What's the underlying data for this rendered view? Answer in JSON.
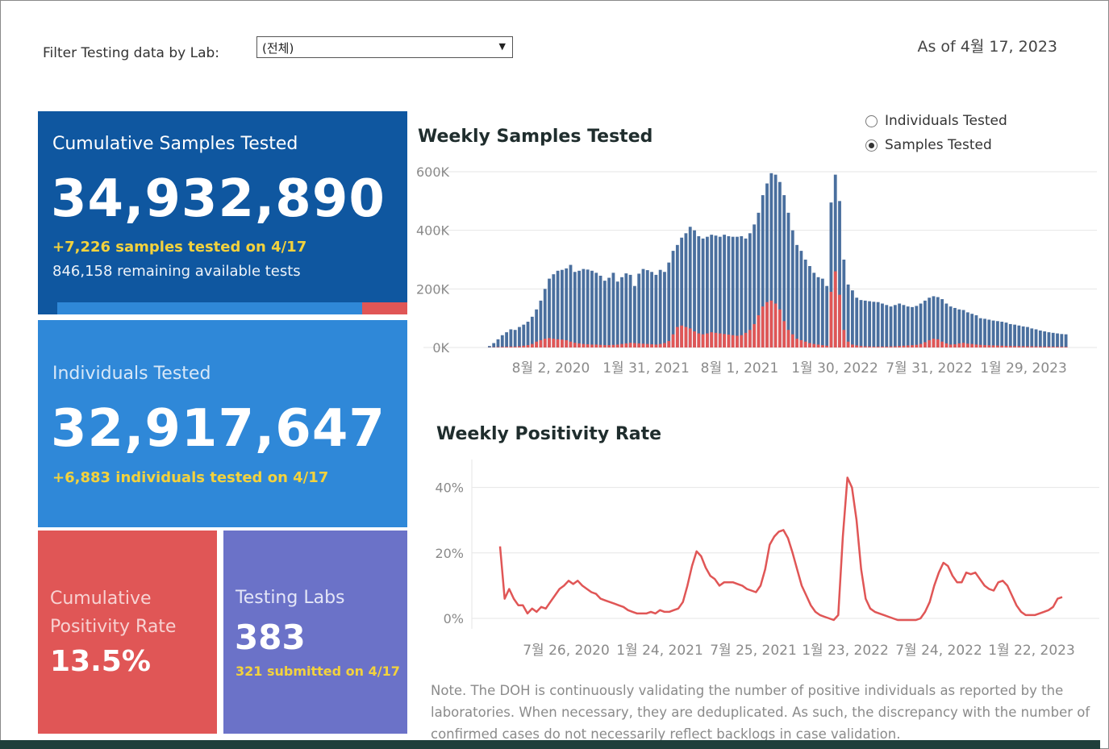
{
  "filter": {
    "label": "Filter Testing data by Lab:",
    "selected": "(전체)"
  },
  "as_of": "As of 4월 17, 2023",
  "cards": {
    "samples": {
      "title": "Cumulative Samples Tested",
      "value": "34,932,890",
      "today": "+7,226 samples tested on 4/17",
      "remaining": "846,158 remaining available tests",
      "used_fraction": 0.87
    },
    "individuals": {
      "title": "Individuals Tested",
      "value": "32,917,647",
      "today": "+6,883  individuals  tested on 4/17"
    },
    "positivity": {
      "title_line1": "Cumulative",
      "title_line2": "Positivity Rate",
      "value": "13.5%"
    },
    "labs": {
      "title": "Testing Labs",
      "value": "383",
      "submitted": "321 submitted on 4/17"
    }
  },
  "weekly_samples": {
    "title": "Weekly Samples Tested",
    "toggle": {
      "options": [
        "Individuals Tested",
        "Samples Tested"
      ],
      "selected": "Samples Tested"
    }
  },
  "weekly_positivity": {
    "title": "Weekly Positivity Rate"
  },
  "note": "Note. The DOH is continuously validating the number of positive individuals as reported by the laboratories. When necessary, they are deduplicated. As such, the discrepancy with the number of confirmed cases do not necessarily reflect backlogs in case validation.",
  "colors": {
    "samples_card": "#0f57a0",
    "individuals_card": "#2f88d8",
    "positivity_card": "#e05656",
    "labs_card": "#6b72c8",
    "highlight": "#f3d23d",
    "bar_blue": "#4a6f9e",
    "bar_red": "#e05656"
  },
  "chart_data": [
    {
      "type": "bar",
      "title": "Weekly Samples Tested",
      "xlabel": "",
      "ylabel": "",
      "ylim": [
        0,
        600000
      ],
      "y_ticks": [
        "0K",
        "200K",
        "400K",
        "600K"
      ],
      "x_tick_labels": [
        "8월 2, 2020",
        "1월 31, 2021",
        "8월 1, 2021",
        "1월 30, 2022",
        "7월 31, 2022",
        "1월 29, 2023"
      ],
      "series": [
        {
          "values": [
            5000,
            15000,
            28000,
            42000,
            52000,
            62000,
            60000,
            70000,
            78000,
            88000,
            105000,
            130000,
            160000,
            200000,
            235000,
            250000,
            262000,
            265000,
            270000,
            282000,
            258000,
            262000,
            268000,
            266000,
            262000,
            255000,
            245000,
            228000,
            238000,
            255000,
            225000,
            240000,
            253000,
            248000,
            210000,
            252000,
            268000,
            264000,
            258000,
            248000,
            265000,
            258000,
            290000,
            330000,
            350000,
            375000,
            390000,
            412000,
            400000,
            380000,
            372000,
            378000,
            385000,
            382000,
            378000,
            385000,
            380000,
            378000,
            378000,
            380000,
            372000,
            390000,
            420000,
            460000,
            520000,
            560000,
            595000,
            590000,
            565000,
            520000,
            460000,
            400000,
            350000,
            330000,
            300000,
            278000,
            255000,
            240000,
            235000,
            210000,
            495000,
            590000,
            500000,
            300000,
            215000,
            195000,
            170000,
            162000,
            160000,
            158000,
            156000,
            155000,
            150000,
            145000,
            140000,
            145000,
            150000,
            145000,
            140000,
            138000,
            142000,
            150000,
            160000,
            170000,
            175000,
            172000,
            165000,
            150000,
            140000,
            135000,
            130000,
            128000,
            120000,
            115000,
            110000,
            100000,
            98000,
            95000,
            92000,
            90000,
            88000,
            85000,
            80000,
            78000,
            75000,
            72000,
            70000,
            65000,
            62000,
            58000,
            55000,
            52000,
            50000,
            48000,
            46000,
            45000
          ]
        },
        {
          "values": [
            500,
            1000,
            1500,
            2000,
            2500,
            3000,
            3000,
            4000,
            6000,
            8000,
            12000,
            20000,
            25000,
            30000,
            32000,
            30000,
            28000,
            27000,
            25000,
            20000,
            16000,
            14000,
            12000,
            11000,
            10000,
            10000,
            9000,
            8000,
            8000,
            9000,
            10000,
            12000,
            14000,
            16000,
            15000,
            14000,
            13000,
            12000,
            11000,
            10000,
            12000,
            15000,
            22000,
            45000,
            70000,
            75000,
            70000,
            65000,
            55000,
            48000,
            45000,
            48000,
            52000,
            50000,
            48000,
            46000,
            44000,
            42000,
            40000,
            42000,
            50000,
            60000,
            80000,
            110000,
            140000,
            155000,
            160000,
            150000,
            130000,
            90000,
            60000,
            45000,
            30000,
            25000,
            20000,
            15000,
            12000,
            10000,
            8000,
            6000,
            190000,
            260000,
            180000,
            60000,
            20000,
            10000,
            7000,
            5000,
            4000,
            3500,
            3000,
            3000,
            3000,
            3000,
            3500,
            4000,
            5000,
            6000,
            7000,
            8000,
            9000,
            12000,
            18000,
            25000,
            30000,
            28000,
            20000,
            14000,
            10000,
            11000,
            14000,
            16000,
            13000,
            12000,
            10000,
            9000,
            8000,
            7500,
            7000,
            6500,
            6000,
            5500,
            5000,
            4800,
            4500,
            4200,
            4000,
            3800,
            3600,
            3400,
            3200,
            3000,
            2800,
            2600,
            2400,
            2200
          ]
        }
      ]
    },
    {
      "type": "line",
      "title": "Weekly Positivity Rate",
      "xlabel": "",
      "ylabel": "",
      "ylim": [
        0,
        0.5
      ],
      "y_ticks": [
        "0%",
        "20%",
        "40%"
      ],
      "x_tick_labels": [
        "7월 26, 2020",
        "1월 24, 2021",
        "7월 25, 2021",
        "1월 23, 2022",
        "7월 24, 2022",
        "1월 22, 2023"
      ],
      "series": [
        {
          "values": [
            0.22,
            0.06,
            0.09,
            0.06,
            0.04,
            0.04,
            0.015,
            0.03,
            0.02,
            0.035,
            0.03,
            0.05,
            0.07,
            0.09,
            0.1,
            0.115,
            0.105,
            0.115,
            0.1,
            0.09,
            0.08,
            0.075,
            0.06,
            0.055,
            0.05,
            0.045,
            0.04,
            0.035,
            0.025,
            0.02,
            0.015,
            0.015,
            0.015,
            0.02,
            0.015,
            0.025,
            0.02,
            0.02,
            0.025,
            0.03,
            0.05,
            0.1,
            0.16,
            0.205,
            0.19,
            0.155,
            0.13,
            0.12,
            0.1,
            0.11,
            0.11,
            0.11,
            0.105,
            0.1,
            0.09,
            0.085,
            0.08,
            0.1,
            0.15,
            0.225,
            0.25,
            0.265,
            0.27,
            0.245,
            0.2,
            0.15,
            0.1,
            0.07,
            0.04,
            0.02,
            0.01,
            0.005,
            0,
            -0.005,
            0.01,
            0.25,
            0.43,
            0.4,
            0.3,
            0.15,
            0.06,
            0.03,
            0.02,
            0.015,
            0.01,
            0.005,
            0,
            -0.005,
            -0.005,
            -0.005,
            -0.005,
            -0.005,
            0,
            0.02,
            0.05,
            0.1,
            0.14,
            0.17,
            0.16,
            0.13,
            0.11,
            0.11,
            0.14,
            0.135,
            0.14,
            0.12,
            0.1,
            0.09,
            0.085,
            0.11,
            0.115,
            0.1,
            0.07,
            0.04,
            0.02,
            0.01,
            0.01,
            0.01,
            0.015,
            0.02,
            0.025,
            0.035,
            0.06,
            0.065
          ]
        }
      ]
    }
  ]
}
